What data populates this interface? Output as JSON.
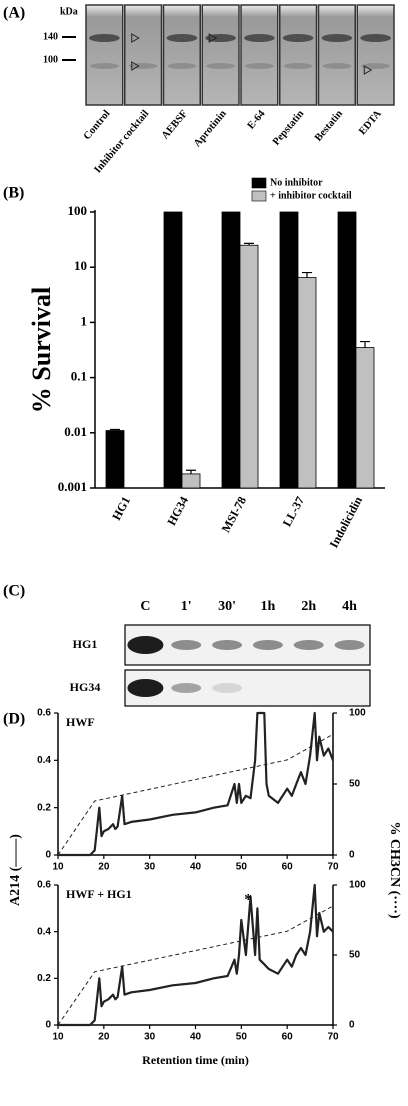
{
  "panel_a": {
    "label": "(A)",
    "unit": "kDa",
    "markers": [
      "140",
      "100"
    ],
    "lanes": [
      "Control",
      "Inhibitor cocktail",
      "AEBSF",
      "Aprotinin",
      "E-64",
      "Pepstatin",
      "Bestatin",
      "EDTA"
    ]
  },
  "panel_c": {
    "label": "(C)",
    "columns": [
      "C",
      "1'",
      "30'",
      "1h",
      "2h",
      "4h"
    ],
    "rows": [
      "HG1",
      "HG34"
    ]
  },
  "chart_data": [
    {
      "panel_label": "(B)",
      "type": "bar",
      "ylabel": "% Survival",
      "log_scale": true,
      "categories": [
        "HG1",
        "HG34",
        "MSI-78",
        "LL-37",
        "Indolicidin"
      ],
      "series": [
        {
          "name": "No inhibitor",
          "color": "#000000",
          "values": [
            0.011,
            100,
            100,
            100,
            100
          ],
          "errors": [
            0.0005,
            null,
            null,
            null,
            null
          ]
        },
        {
          "name": "+ inhibitor cocktail",
          "color": "#c0c0c0",
          "values": [
            null,
            0.0018,
            25,
            6.5,
            0.35
          ],
          "errors": [
            null,
            0.0003,
            2,
            1.5,
            0.1
          ]
        }
      ],
      "ylim": [
        0.001,
        100
      ],
      "yticks": [
        0.001,
        0.01,
        0.1,
        1,
        10,
        100
      ],
      "legend": "top"
    },
    {
      "panel_label": "(D)",
      "type": "line",
      "title": "HWF",
      "ylabel": "A214 (——)",
      "y2label": "% CH3CN (····)",
      "series": [
        {
          "name": "A214",
          "color": "#222222",
          "style": "solid",
          "x": [
            10,
            17,
            18,
            19,
            19.5,
            20,
            21,
            22,
            22.5,
            23,
            24,
            24.5,
            26,
            30,
            35,
            40,
            44,
            47,
            48.5,
            49,
            49.5,
            50,
            51,
            52,
            53,
            53.5,
            54,
            55,
            55.5,
            56,
            58,
            60,
            61,
            62,
            63,
            64,
            65,
            66,
            66.5,
            67,
            68,
            69,
            70
          ],
          "values": [
            0,
            0,
            0.02,
            0.2,
            0.08,
            0.1,
            0.11,
            0.13,
            0.11,
            0.12,
            0.25,
            0.13,
            0.14,
            0.15,
            0.17,
            0.18,
            0.2,
            0.21,
            0.3,
            0.22,
            0.3,
            0.22,
            0.25,
            0.24,
            0.4,
            0.6,
            0.6,
            0.6,
            0.3,
            0.25,
            0.22,
            0.28,
            0.25,
            0.3,
            0.35,
            0.3,
            0.42,
            0.6,
            0.4,
            0.5,
            0.42,
            0.45,
            0.4
          ]
        },
        {
          "name": "CH3CN",
          "color": "#222222",
          "style": "dashed",
          "axis": "y2",
          "x": [
            10,
            18,
            60,
            70
          ],
          "values": [
            0,
            38,
            67,
            85
          ]
        }
      ],
      "xlim": [
        10,
        70
      ],
      "xticks": [
        10,
        20,
        30,
        40,
        50,
        60,
        70
      ],
      "ylim": [
        0,
        0.6
      ],
      "yticks": [
        0,
        0.2,
        0.4,
        0.6
      ],
      "y2lim": [
        0,
        100
      ],
      "y2ticks": [
        0,
        50,
        100
      ]
    },
    {
      "type": "line",
      "title": "HWF + HG1",
      "xlabel": "Retention time (min)",
      "annotation": "*",
      "series": [
        {
          "name": "A214",
          "color": "#222222",
          "style": "solid",
          "x": [
            10,
            17,
            18,
            19,
            19.5,
            20,
            21,
            22,
            22.5,
            23,
            24,
            24.5,
            26,
            30,
            35,
            40,
            44,
            47,
            48.5,
            49,
            49.5,
            50,
            51,
            52,
            53,
            53.5,
            54,
            55,
            55.5,
            56,
            58,
            60,
            61,
            62,
            63,
            64,
            65,
            66,
            66.5,
            67,
            68,
            69,
            70
          ],
          "values": [
            0,
            0,
            0.02,
            0.2,
            0.08,
            0.1,
            0.11,
            0.13,
            0.11,
            0.12,
            0.25,
            0.13,
            0.14,
            0.15,
            0.17,
            0.18,
            0.2,
            0.21,
            0.28,
            0.22,
            0.3,
            0.45,
            0.3,
            0.55,
            0.3,
            0.5,
            0.28,
            0.26,
            0.25,
            0.24,
            0.22,
            0.28,
            0.25,
            0.3,
            0.33,
            0.3,
            0.4,
            0.6,
            0.38,
            0.48,
            0.4,
            0.42,
            0.4
          ]
        },
        {
          "name": "CH3CN",
          "color": "#222222",
          "style": "dashed",
          "axis": "y2",
          "x": [
            10,
            18,
            60,
            70
          ],
          "values": [
            0,
            38,
            67,
            85
          ]
        }
      ],
      "xlim": [
        10,
        70
      ],
      "xticks": [
        10,
        20,
        30,
        40,
        50,
        60,
        70
      ],
      "ylim": [
        0,
        0.6
      ],
      "yticks": [
        0,
        0.2,
        0.4,
        0.6
      ],
      "y2lim": [
        0,
        100
      ],
      "y2ticks": [
        0,
        50,
        100
      ]
    }
  ]
}
